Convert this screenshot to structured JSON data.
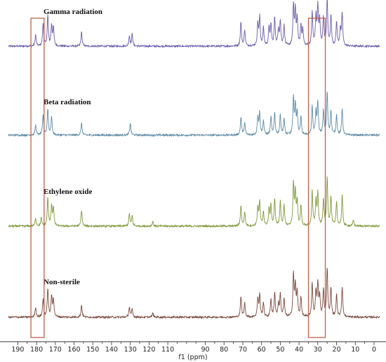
{
  "chart_data": {
    "type": "line",
    "title": "",
    "xlabel": "f1 (ppm)",
    "ylabel": "",
    "xlim": [
      195,
      -3
    ],
    "x_reversed": true,
    "x_ticks": [
      190,
      180,
      170,
      160,
      150,
      140,
      130,
      120,
      110,
      90,
      80,
      70,
      60,
      50,
      40,
      30,
      20,
      10,
      0
    ],
    "grid": false,
    "series": [
      {
        "name": "Gamma radiation",
        "color": "#6b5bad",
        "peaks": [
          [
            180.5,
            0.28
          ],
          [
            176.5,
            0.55
          ],
          [
            174,
            0.75
          ],
          [
            172,
            0.5
          ],
          [
            171,
            0.45
          ],
          [
            156,
            0.35
          ],
          [
            130.5,
            0.25
          ],
          [
            129,
            0.3
          ],
          [
            71,
            0.6
          ],
          [
            69,
            0.4
          ],
          [
            62,
            0.55
          ],
          [
            61,
            0.7
          ],
          [
            59,
            0.45
          ],
          [
            56,
            0.45
          ],
          [
            55,
            0.5
          ],
          [
            53,
            0.7
          ],
          [
            51,
            0.4
          ],
          [
            50,
            0.6
          ],
          [
            48,
            0.5
          ],
          [
            43,
            1.0
          ],
          [
            42,
            0.85
          ],
          [
            41,
            0.65
          ],
          [
            39,
            0.5
          ],
          [
            38,
            0.4
          ],
          [
            33,
            0.85
          ],
          [
            31,
            0.7
          ],
          [
            30,
            0.95
          ],
          [
            29,
            0.6
          ],
          [
            27,
            0.7
          ],
          [
            25,
            1.15
          ],
          [
            23,
            0.75
          ],
          [
            20,
            0.6
          ],
          [
            18,
            0.4
          ],
          [
            17,
            0.8
          ]
        ]
      },
      {
        "name": "Beta radiation",
        "color": "#5f8ba5",
        "peaks": [
          [
            180.5,
            0.25
          ],
          [
            176.5,
            0.5
          ],
          [
            174,
            0.65
          ],
          [
            172,
            0.45
          ],
          [
            156,
            0.3
          ],
          [
            130,
            0.3
          ],
          [
            71,
            0.45
          ],
          [
            69,
            0.3
          ],
          [
            62,
            0.45
          ],
          [
            61,
            0.55
          ],
          [
            59,
            0.35
          ],
          [
            55,
            0.45
          ],
          [
            53,
            0.55
          ],
          [
            50,
            0.5
          ],
          [
            48,
            0.4
          ],
          [
            43,
            0.9
          ],
          [
            42,
            0.7
          ],
          [
            41,
            0.55
          ],
          [
            39,
            0.45
          ],
          [
            33,
            0.7
          ],
          [
            31,
            0.55
          ],
          [
            30,
            0.8
          ],
          [
            27,
            0.6
          ],
          [
            25,
            1.05
          ],
          [
            23,
            0.6
          ],
          [
            20,
            0.5
          ],
          [
            17,
            0.65
          ]
        ]
      },
      {
        "name": "Ethylene oxide",
        "color": "#7e9a3a",
        "peaks": [
          [
            180.5,
            0.2
          ],
          [
            177.5,
            0.2
          ],
          [
            174,
            0.7
          ],
          [
            172,
            0.5
          ],
          [
            171,
            0.45
          ],
          [
            156,
            0.4
          ],
          [
            130.5,
            0.3
          ],
          [
            129,
            0.25
          ],
          [
            118,
            0.12
          ],
          [
            71,
            0.5
          ],
          [
            69,
            0.35
          ],
          [
            62,
            0.45
          ],
          [
            61,
            0.6
          ],
          [
            59,
            0.35
          ],
          [
            56,
            0.4
          ],
          [
            55,
            0.5
          ],
          [
            53,
            0.65
          ],
          [
            50,
            0.6
          ],
          [
            48,
            0.5
          ],
          [
            43,
            1.05
          ],
          [
            42,
            0.8
          ],
          [
            41,
            0.6
          ],
          [
            39,
            0.5
          ],
          [
            33,
            0.85
          ],
          [
            31,
            0.6
          ],
          [
            30,
            0.8
          ],
          [
            27,
            0.65
          ],
          [
            25,
            1.2
          ],
          [
            23,
            0.7
          ],
          [
            20,
            0.6
          ],
          [
            17,
            0.75
          ],
          [
            11,
            0.15
          ]
        ]
      },
      {
        "name": "Non-sterile",
        "color": "#7a4a3e",
        "peaks": [
          [
            180.5,
            0.25
          ],
          [
            176.5,
            0.45
          ],
          [
            174,
            0.7
          ],
          [
            172,
            0.5
          ],
          [
            171,
            0.45
          ],
          [
            156,
            0.3
          ],
          [
            130.5,
            0.25
          ],
          [
            129,
            0.2
          ],
          [
            118,
            0.1
          ],
          [
            71,
            0.5
          ],
          [
            69,
            0.35
          ],
          [
            62,
            0.45
          ],
          [
            61,
            0.55
          ],
          [
            59,
            0.35
          ],
          [
            55,
            0.45
          ],
          [
            53,
            0.6
          ],
          [
            51,
            0.3
          ],
          [
            50,
            0.55
          ],
          [
            48,
            0.45
          ],
          [
            43,
            1.05
          ],
          [
            42,
            0.75
          ],
          [
            41,
            0.6
          ],
          [
            39,
            0.5
          ],
          [
            33,
            0.85
          ],
          [
            31,
            0.6
          ],
          [
            30,
            0.8
          ],
          [
            29,
            0.5
          ],
          [
            27,
            0.65
          ],
          [
            25,
            1.2
          ],
          [
            23,
            0.7
          ],
          [
            20,
            0.55
          ],
          [
            17,
            0.75
          ]
        ]
      }
    ],
    "highlight_boxes": [
      {
        "x_range": [
          183,
          176
        ],
        "color": "#c0604a"
      },
      {
        "x_range": [
          35,
          26
        ],
        "color": "#c0604a"
      }
    ]
  }
}
